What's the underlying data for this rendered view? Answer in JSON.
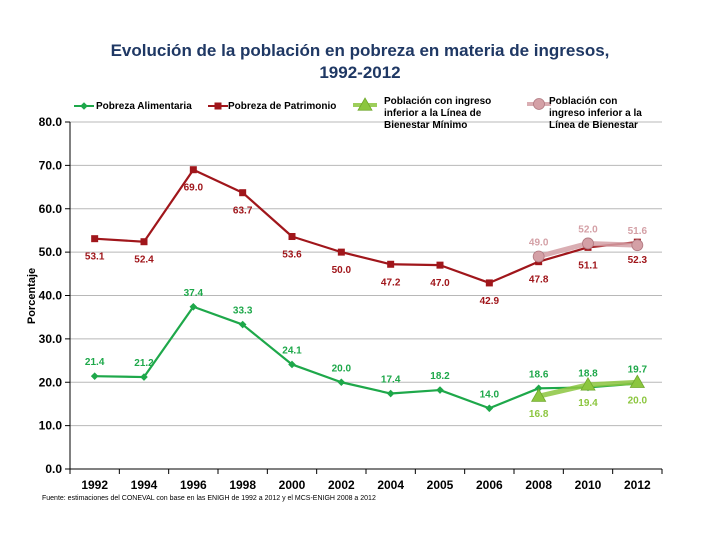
{
  "title_line1": "Evolución de la población en pobreza en materia de ingresos,",
  "title_line2": "1992-2012",
  "source": "Fuente: estimaciones del CONEVAL  con base en las ENIGH de 1992 a 2012 y el MCS-ENIGH 2008 a 2012",
  "chart_data": {
    "type": "line",
    "title": "Evolución de la población en pobreza en materia de ingresos, 1992-2012",
    "xlabel": "",
    "ylabel": "Porcentaje",
    "ylim": [
      0,
      80
    ],
    "yticks": [
      "0.0",
      "10.0",
      "20.0",
      "30.0",
      "40.0",
      "50.0",
      "60.0",
      "70.0",
      "80.0"
    ],
    "categories": [
      "1992",
      "1994",
      "1996",
      "1998",
      "2000",
      "2002",
      "2004",
      "2005",
      "2006",
      "2008",
      "2010",
      "2012"
    ],
    "grid": true,
    "legend": "top",
    "series": [
      {
        "name": "Pobreza Alimentaria",
        "color": "#1ea84a",
        "marker": "diamond",
        "values": [
          21.4,
          21.2,
          37.4,
          33.3,
          24.1,
          20.0,
          17.4,
          18.2,
          14.0,
          18.6,
          18.8,
          19.7
        ],
        "labels": [
          "21.4",
          "21.2",
          "37.4",
          "33.3",
          "24.1",
          "20.0",
          "17.4",
          "18.2",
          "14.0",
          "18.6",
          "18.8",
          "19.7"
        ]
      },
      {
        "name": "Pobreza de Patrimonio",
        "color": "#a0161b",
        "marker": "square",
        "values": [
          53.1,
          52.4,
          69.0,
          63.7,
          53.6,
          50.0,
          47.2,
          47.0,
          42.9,
          47.8,
          51.1,
          52.3
        ],
        "labels": [
          "53.1",
          "52.4",
          "69.0",
          "63.7",
          "53.6",
          "50.0",
          "47.2",
          "47.0",
          "42.9",
          "47.8",
          "51.1",
          "52.3"
        ]
      },
      {
        "name": "Población con ingreso inferior a la Línea de Bienestar Mínimo",
        "color": "#8cc63f",
        "marker": "triangle",
        "values": [
          null,
          null,
          null,
          null,
          null,
          null,
          null,
          null,
          null,
          16.8,
          19.4,
          20.0
        ],
        "labels": [
          null,
          null,
          null,
          null,
          null,
          null,
          null,
          null,
          null,
          "16.8",
          "19.4",
          "20.0"
        ]
      },
      {
        "name": "Población con ingreso inferior a la Línea de Bienestar",
        "color": "#d4a0a6",
        "marker": "circle",
        "values": [
          null,
          null,
          null,
          null,
          null,
          null,
          null,
          null,
          null,
          49.0,
          52.0,
          51.6
        ],
        "labels": [
          null,
          null,
          null,
          null,
          null,
          null,
          null,
          null,
          null,
          "49.0",
          "52.0",
          "51.6"
        ]
      }
    ],
    "legend_lines": [
      [
        "Pobreza Alimentaria"
      ],
      [
        "Pobreza de Patrimonio"
      ],
      [
        "Población con ingreso",
        "inferior a la Línea de",
        "Bienestar Mínimo"
      ],
      [
        "Población con",
        "ingreso inferior a la",
        "Línea de Bienestar"
      ]
    ]
  }
}
